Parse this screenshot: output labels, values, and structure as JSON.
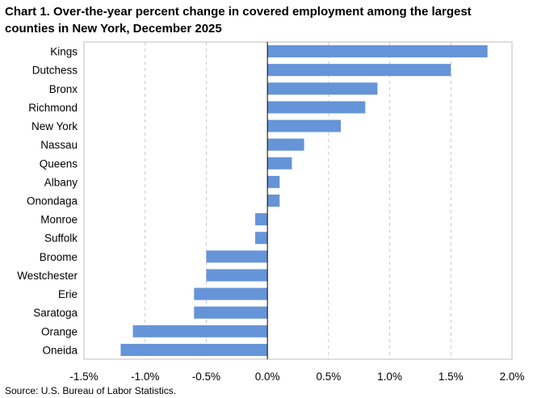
{
  "chart_data": {
    "type": "bar",
    "orientation": "horizontal",
    "title": "Chart 1. Over-the-year percent change in covered employment among the largest counties in New York, December 2025",
    "categories": [
      "Kings",
      "Dutchess",
      "Bronx",
      "Richmond",
      "New York",
      "Nassau",
      "Queens",
      "Albany",
      "Onondaga",
      "Monroe",
      "Suffolk",
      "Broome",
      "Westchester",
      "Erie",
      "Saratoga",
      "Orange",
      "Oneida"
    ],
    "values": [
      1.8,
      1.5,
      0.9,
      0.8,
      0.6,
      0.3,
      0.2,
      0.1,
      0.1,
      -0.1,
      -0.1,
      -0.5,
      -0.5,
      -0.6,
      -0.6,
      -1.1,
      -1.2
    ],
    "xlim": [
      -1.5,
      2.0
    ],
    "xticks": [
      -1.5,
      -1.0,
      -0.5,
      0.0,
      0.5,
      1.0,
      1.5,
      2.0
    ],
    "xtick_labels": [
      "-1.5%",
      "-1.0%",
      "-0.5%",
      "0.0%",
      "0.5%",
      "1.0%",
      "1.5%",
      "2.0%"
    ],
    "xlabel": "",
    "ylabel": "",
    "grid": "vertical dashed",
    "bar_color": "#6694d8",
    "source": "Source: U.S. Bureau of Labor Statistics."
  }
}
